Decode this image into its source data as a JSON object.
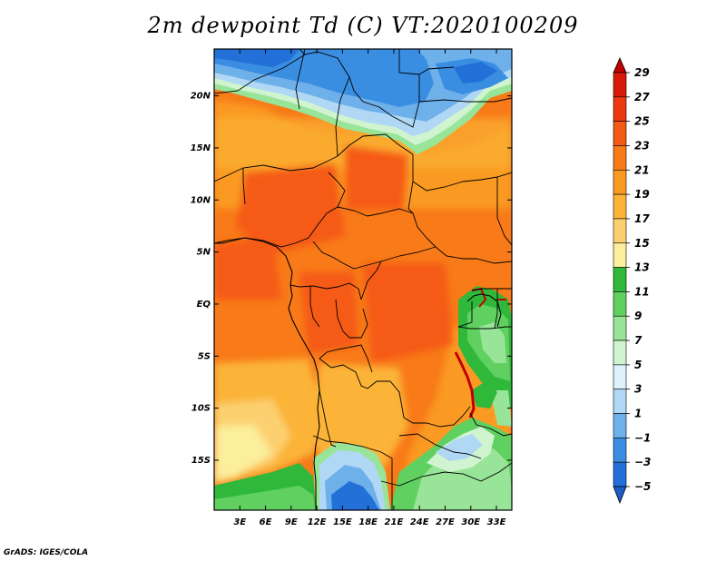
{
  "title": "2m dewpoint Td (C) VT:2020100209",
  "credit": "GrADS: IGES/COLA",
  "map": {
    "lat_labels": [
      "20N",
      "15N",
      "10N",
      "5N",
      "EQ",
      "5S",
      "10S",
      "15S"
    ],
    "lon_labels": [
      "3E",
      "6E",
      "9E",
      "12E",
      "15E",
      "18E",
      "21E",
      "24E",
      "27E",
      "30E",
      "33E"
    ],
    "lat_values": [
      20,
      15,
      10,
      5,
      0,
      -5,
      -10,
      -15
    ],
    "lon_values": [
      3,
      6,
      9,
      12,
      15,
      18,
      21,
      24,
      27,
      30,
      33
    ],
    "lat_range": [
      -19.8,
      24.5
    ],
    "lon_range": [
      0,
      34.8
    ]
  },
  "colorbar": {
    "labels": [
      "29",
      "27",
      "25",
      "23",
      "21",
      "19",
      "17",
      "15",
      "13",
      "11",
      "9",
      "7",
      "5",
      "3",
      "1",
      "−1",
      "−3",
      "−5"
    ],
    "colors": [
      "#c00000",
      "#d81a0a",
      "#ec3a10",
      "#f55a14",
      "#f87a18",
      "#fa9a20",
      "#fbb438",
      "#fcd070",
      "#fbee9c",
      "#2fb83a",
      "#60d060",
      "#98e498",
      "#d0f4d0",
      "#ddf2fb",
      "#b0d8f4",
      "#6db0ea",
      "#3a8ee2",
      "#2370d8",
      "#1a5cc8"
    ]
  }
}
